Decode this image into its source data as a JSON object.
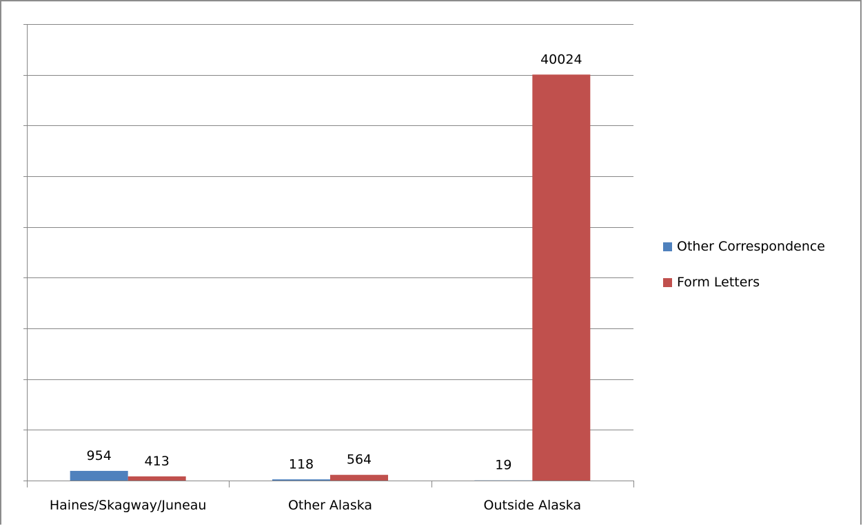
{
  "chart_data": {
    "type": "bar",
    "title": "",
    "xlabel": "",
    "ylabel": "",
    "categories": [
      "Haines/Skagway/Juneau",
      "Other Alaska",
      "Outside Alaska"
    ],
    "series": [
      {
        "name": "Other Correspondence",
        "color": "#4f81bd",
        "values": [
          954,
          118,
          19
        ]
      },
      {
        "name": "Form Letters",
        "color": "#c0504d",
        "values": [
          413,
          564,
          40024
        ]
      }
    ],
    "ylim": [
      0,
      45000
    ],
    "y_tick_step": 5000,
    "y_tick_labels_shown": false,
    "grid": true,
    "data_labels": true,
    "legend_position": "right"
  }
}
